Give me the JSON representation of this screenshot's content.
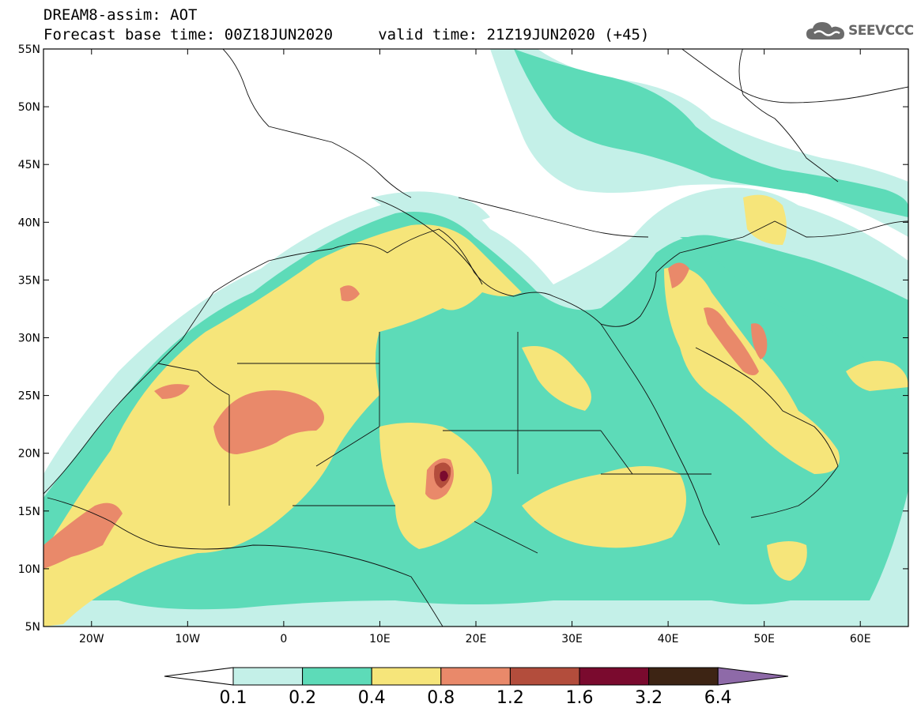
{
  "header": {
    "title_line1": "DREAM8-assim: AOT",
    "title_line2": "Forecast base time: 00Z18JUN2020     valid time: 21Z19JUN2020 (+45)"
  },
  "brand": {
    "name": "SEEVCCC",
    "icon": "cloud-logo-icon"
  },
  "map": {
    "lon_range": [
      -25,
      65
    ],
    "lat_range": [
      5,
      55
    ],
    "lat_ticks": [
      {
        "value": 55,
        "label": "55N"
      },
      {
        "value": 50,
        "label": "50N"
      },
      {
        "value": 45,
        "label": "45N"
      },
      {
        "value": 40,
        "label": "40N"
      },
      {
        "value": 35,
        "label": "35N"
      },
      {
        "value": 30,
        "label": "30N"
      },
      {
        "value": 25,
        "label": "25N"
      },
      {
        "value": 20,
        "label": "20N"
      },
      {
        "value": 15,
        "label": "15N"
      },
      {
        "value": 10,
        "label": "10N"
      },
      {
        "value": 5,
        "label": "5N"
      }
    ],
    "lon_ticks": [
      {
        "value": -20,
        "label": "20W"
      },
      {
        "value": -10,
        "label": "10W"
      },
      {
        "value": 0,
        "label": "0"
      },
      {
        "value": 10,
        "label": "10E"
      },
      {
        "value": 20,
        "label": "20E"
      },
      {
        "value": 30,
        "label": "30E"
      },
      {
        "value": 40,
        "label": "40E"
      },
      {
        "value": 50,
        "label": "50E"
      },
      {
        "value": 60,
        "label": "60E"
      }
    ]
  },
  "colorbar": {
    "levels": [
      "0.1",
      "0.2",
      "0.4",
      "0.8",
      "1.2",
      "1.6",
      "3.2",
      "6.4"
    ],
    "colors": [
      "#ffffff",
      "#c4f0e8",
      "#5ddbb8",
      "#f6e57a",
      "#e9896a",
      "#b34d3c",
      "#7a0a2e",
      "#3d2414",
      "#8e6aa8"
    ]
  }
}
